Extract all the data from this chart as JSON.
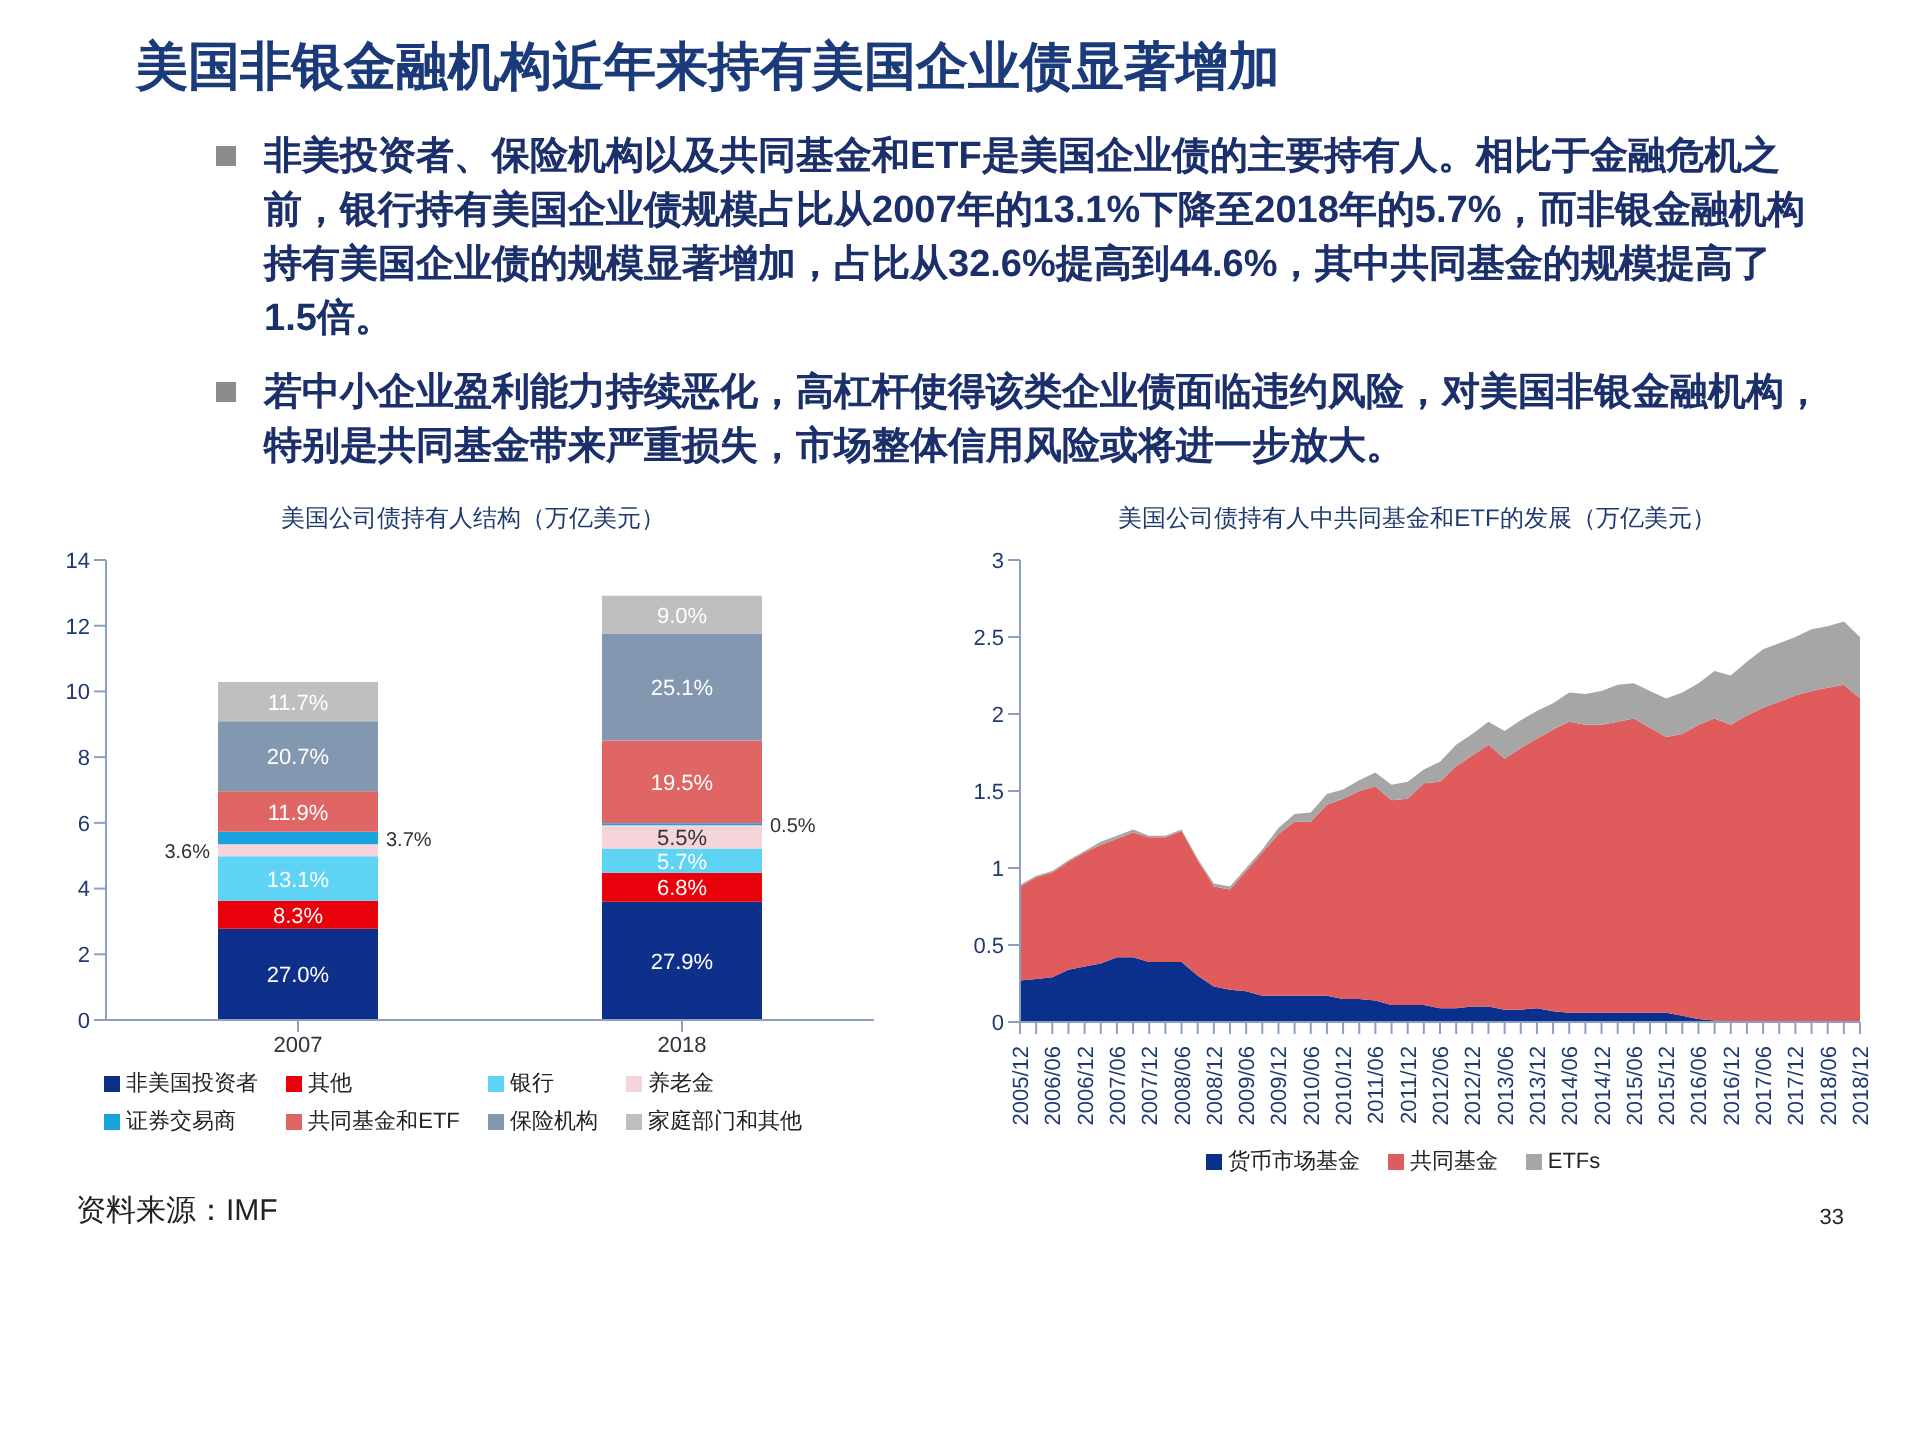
{
  "chart_data": [
    {
      "type": "other",
      "title": "美国非银金融机构近年来持有美国企业债显著增加",
      "annotations": [
        "非美投资者、保险机构以及共同基金和ETF是美国企业债的主要持有人。相比于金融危机之前，银行持有美国企业债规模占比从2007年的13.1%下降至2018年的5.7%，而非银金融机构持有美国企业债的规模显著增加，占比从32.6%提高到44.6%，其中共同基金的规模提高了1.5倍。",
        "若中小企业盈利能力持续恶化，高杠杆使得该类企业债面临违约风险，对美国非银金融机构，特别是共同基金带来严重损失，市场整体信用风险或将进一步放大。"
      ]
    },
    {
      "type": "bar",
      "title": "美国公司债持有人结构（万亿美元）",
      "categories": [
        "2007",
        "2018"
      ],
      "stacked": true,
      "ylim": [
        0,
        14
      ],
      "yticks": [
        0,
        2,
        4,
        6,
        8,
        10,
        12,
        14
      ],
      "grid": false,
      "legend": "bottom",
      "series": [
        {
          "name": "非美国投资者",
          "color": "#0e2f8a",
          "values": [
            2.78,
            3.6
          ]
        },
        {
          "name": "其他",
          "color": "#e8000b",
          "values": [
            0.85,
            0.88
          ]
        },
        {
          "name": "银行",
          "color": "#5fd3f3",
          "values": [
            1.35,
            0.74
          ]
        },
        {
          "name": "养老金",
          "color": "#f5d5da",
          "values": [
            0.37,
            0.71
          ]
        },
        {
          "name": "证券交易商",
          "color": "#1aa3dc",
          "values": [
            0.38,
            0.06
          ]
        },
        {
          "name": "共同基金和ETF",
          "color": "#e06666",
          "values": [
            1.23,
            2.52
          ]
        },
        {
          "name": "保险机构",
          "color": "#8497b0",
          "values": [
            2.13,
            3.24
          ]
        },
        {
          "name": "家庭部门和其他",
          "color": "#bfbfbf",
          "values": [
            1.2,
            1.16
          ]
        }
      ],
      "annotations": [
        "27.0%",
        "8.3%",
        "13.1%",
        "3.6%",
        "3.7%",
        "11.9%",
        "20.7%",
        "11.7%",
        "27.9%",
        "6.8%",
        "5.7%",
        "5.5%",
        "0.5%",
        "19.5%",
        "25.1%",
        "9.0%"
      ]
    },
    {
      "type": "area",
      "title": "美国公司债持有人中共同基金和ETF的发展（万亿美元）",
      "stacked": true,
      "ylim": [
        0,
        3
      ],
      "yticks": [
        0,
        0.5,
        1,
        1.5,
        2,
        2.5,
        3
      ],
      "grid": false,
      "legend": "bottom",
      "categories": [
        "2005/12",
        null,
        "2006/06",
        null,
        "2006/12",
        null,
        "2007/06",
        null,
        "2007/12",
        null,
        "2008/06",
        null,
        "2008/12",
        null,
        "2009/06",
        null,
        "2009/12",
        null,
        "2010/06",
        null,
        "2010/12",
        null,
        "2011/06",
        null,
        "2011/12",
        null,
        "2012/06",
        null,
        "2012/12",
        null,
        "2013/06",
        null,
        "2013/12",
        null,
        "2014/06",
        null,
        "2014/12",
        null,
        "2015/06",
        null,
        "2015/12",
        null,
        "2016/06",
        null,
        "2016/12",
        null,
        "2017/06",
        null,
        "2017/12",
        null,
        "2018/06",
        null,
        "2018/12"
      ],
      "series": [
        {
          "name": "货币市场基金",
          "color": "#0a2f8c",
          "values": [
            0.27,
            0.28,
            0.29,
            0.34,
            0.36,
            0.38,
            0.42,
            0.42,
            0.39,
            0.39,
            0.39,
            0.3,
            0.23,
            0.21,
            0.2,
            0.17,
            0.17,
            0.17,
            0.17,
            0.17,
            0.15,
            0.15,
            0.14,
            0.11,
            0.11,
            0.11,
            0.09,
            0.09,
            0.1,
            0.1,
            0.08,
            0.08,
            0.09,
            0.07,
            0.06,
            0.06,
            0.06,
            0.06,
            0.06,
            0.06,
            0.06,
            0.04,
            0.02,
            0.01,
            0,
            0,
            0,
            0,
            0,
            0,
            0,
            0,
            0
          ]
        },
        {
          "name": "共同基金",
          "color": "#e05c5c",
          "values": [
            0.61,
            0.66,
            0.68,
            0.7,
            0.74,
            0.77,
            0.77,
            0.81,
            0.81,
            0.81,
            0.85,
            0.75,
            0.65,
            0.65,
            0.78,
            0.93,
            1.05,
            1.13,
            1.13,
            1.24,
            1.3,
            1.35,
            1.39,
            1.33,
            1.34,
            1.44,
            1.47,
            1.57,
            1.63,
            1.7,
            1.63,
            1.7,
            1.75,
            1.83,
            1.89,
            1.87,
            1.87,
            1.89,
            1.91,
            1.85,
            1.79,
            1.83,
            1.91,
            1.96,
            1.93,
            1.99,
            2.04,
            2.08,
            2.12,
            2.15,
            2.17,
            2.19,
            2.1
          ]
        },
        {
          "name": "ETFs",
          "color": "#a6a6a6",
          "values": [
            0.01,
            0.01,
            0.01,
            0.01,
            0.01,
            0.02,
            0.02,
            0.02,
            0.01,
            0.01,
            0.01,
            0.01,
            0.02,
            0.02,
            0.02,
            0.02,
            0.04,
            0.05,
            0.06,
            0.07,
            0.06,
            0.07,
            0.09,
            0.1,
            0.11,
            0.09,
            0.13,
            0.14,
            0.14,
            0.15,
            0.18,
            0.18,
            0.18,
            0.17,
            0.19,
            0.2,
            0.22,
            0.24,
            0.23,
            0.24,
            0.25,
            0.27,
            0.27,
            0.31,
            0.32,
            0.35,
            0.38,
            0.38,
            0.38,
            0.4,
            0.4,
            0.41,
            0.4
          ]
        }
      ]
    },
    {
      "type": "other",
      "annotations": [
        "资料来源：IMF",
        "33"
      ]
    }
  ]
}
